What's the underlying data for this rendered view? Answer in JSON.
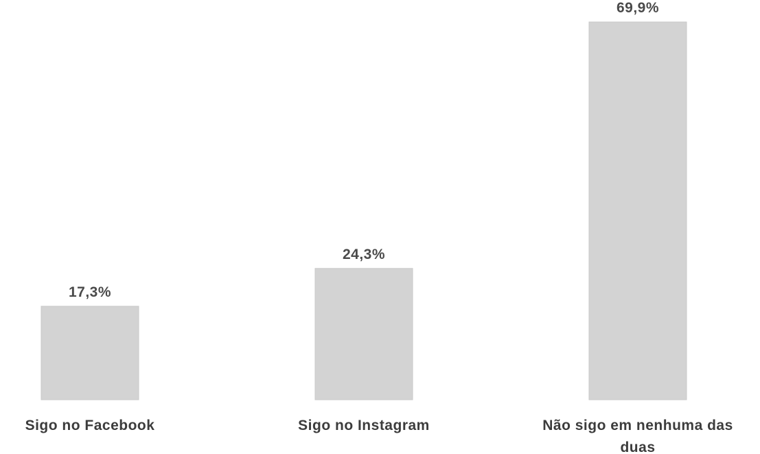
{
  "chart_data": {
    "type": "bar",
    "categories": [
      [
        "Sigo no Facebook"
      ],
      [
        "Sigo no Instagram"
      ],
      [
        "Não sigo em nenhuma das",
        "duas"
      ]
    ],
    "values": [
      17.3,
      24.3,
      69.9
    ],
    "value_labels": [
      "17,3%",
      "24,3%",
      "69,9%"
    ],
    "title": "",
    "xlabel": "",
    "ylabel": "",
    "ylim": [
      0,
      69.9
    ],
    "grid": false,
    "legend": "none",
    "colors": {
      "bar": "#d3d3d3",
      "bar_edge": "#c9c9c9",
      "label_text": "#4a4a4a"
    }
  }
}
